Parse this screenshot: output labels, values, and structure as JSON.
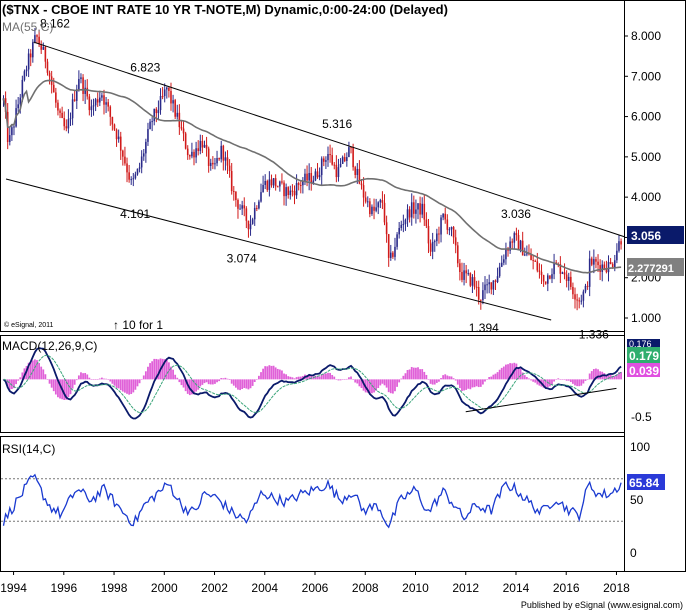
{
  "colors": {
    "up": "#2a2a8a",
    "down": "#d11a1a",
    "ma": "#707070",
    "macd_line": "#0a1a6a",
    "signal_line": "#3aa57a",
    "histogram": "#e060d8",
    "rsi_line": "#1a3ad0",
    "last_price_bg": "#0a1a6a",
    "ma_label_bg": "#808080",
    "macd_label_bg": "#2fae6e",
    "signal_label_bg": "#e050e0",
    "rsi_label_bg": "#2a3ad8",
    "trend": "#000000",
    "grid": "#cfcfcf"
  },
  "chart_data": [
    {
      "type": "candlestick",
      "title": "($TNX - CBOE INT RATE 10 YR T-NOTE,M) Dynamic,0:00-24:00 (Delayed)",
      "ma_label": "MA(55,C)",
      "ma_period": 55,
      "ylim": [
        0.5,
        8.7
      ],
      "yticks": [
        1.0,
        2.0,
        3.0,
        4.0,
        5.0,
        6.0,
        7.0,
        8.0
      ],
      "ytick_labels": [
        "1.000",
        "2.000",
        "3.000",
        "4.000",
        "5.000",
        "6.000",
        "7.000",
        "8.000"
      ],
      "xlim": [
        1993.5,
        2018.3
      ],
      "last_price": "3.056",
      "ma_value": "2.277291",
      "anchors": [
        [
          1993.6,
          6.4
        ],
        [
          1993.8,
          5.3
        ],
        [
          1994.0,
          5.8
        ],
        [
          1994.5,
          7.2
        ],
        [
          1994.9,
          8.0
        ],
        [
          1995.3,
          7.4
        ],
        [
          1995.8,
          6.0
        ],
        [
          1996.1,
          5.6
        ],
        [
          1996.6,
          7.0
        ],
        [
          1997.1,
          6.2
        ],
        [
          1997.5,
          6.6
        ],
        [
          1998.2,
          5.4
        ],
        [
          1998.7,
          4.3
        ],
        [
          1999.0,
          4.7
        ],
        [
          1999.5,
          5.9
        ],
        [
          1999.9,
          6.4
        ],
        [
          2000.1,
          6.7
        ],
        [
          2000.6,
          5.8
        ],
        [
          2001.0,
          5.0
        ],
        [
          2001.5,
          5.4
        ],
        [
          2001.9,
          4.6
        ],
        [
          2002.3,
          5.2
        ],
        [
          2002.8,
          4.0
        ],
        [
          2003.4,
          3.3
        ],
        [
          2003.9,
          4.3
        ],
        [
          2004.3,
          4.4
        ],
        [
          2004.7,
          4.2
        ],
        [
          2005.0,
          4.1
        ],
        [
          2005.5,
          4.4
        ],
        [
          2006.0,
          4.5
        ],
        [
          2006.5,
          5.1
        ],
        [
          2006.9,
          4.6
        ],
        [
          2007.4,
          5.2
        ],
        [
          2007.6,
          4.7
        ],
        [
          2007.9,
          4.1
        ],
        [
          2008.3,
          3.6
        ],
        [
          2008.7,
          3.9
        ],
        [
          2008.95,
          2.3
        ],
        [
          2009.4,
          3.3
        ],
        [
          2009.8,
          3.7
        ],
        [
          2010.3,
          3.7
        ],
        [
          2010.6,
          2.6
        ],
        [
          2011.1,
          3.5
        ],
        [
          2011.4,
          3.2
        ],
        [
          2011.8,
          2.1
        ],
        [
          2012.3,
          1.9
        ],
        [
          2012.55,
          1.5
        ],
        [
          2012.9,
          1.8
        ],
        [
          2013.2,
          2.0
        ],
        [
          2013.6,
          2.7
        ],
        [
          2013.9,
          3.0
        ],
        [
          2014.4,
          2.6
        ],
        [
          2014.8,
          2.3
        ],
        [
          2015.1,
          1.9
        ],
        [
          2015.5,
          2.3
        ],
        [
          2015.9,
          2.2
        ],
        [
          2016.1,
          1.9
        ],
        [
          2016.5,
          1.45
        ],
        [
          2016.8,
          1.7
        ],
        [
          2016.95,
          2.4
        ],
        [
          2017.4,
          2.3
        ],
        [
          2017.8,
          2.3
        ],
        [
          2018.0,
          2.7
        ],
        [
          2018.2,
          3.0
        ]
      ],
      "annotations": [
        {
          "text": "8.162",
          "x": 1995.05,
          "y": 8.162
        },
        {
          "text": "6.823",
          "x": 2000.0,
          "y": 6.823
        },
        {
          "text": "4.101",
          "x": 1998.8,
          "y": 4.101
        },
        {
          "text": "3.074",
          "x": 2002.8,
          "y": 3.074
        },
        {
          "text": "5.316",
          "x": 2007.0,
          "y": 5.316
        },
        {
          "text": "1.394",
          "x": 2012.6,
          "y": 1.394
        },
        {
          "text": "3.036",
          "x": 2013.8,
          "y": 3.036
        },
        {
          "text": "1.336",
          "x": 2016.5,
          "y": 1.336
        }
      ],
      "channel_upper": [
        [
          1994.8,
          7.85
        ],
        [
          2018.3,
          3.02
        ]
      ],
      "channel_lower": [
        [
          1993.7,
          4.45
        ],
        [
          2015.4,
          0.95
        ]
      ],
      "notes": [
        "© eSignal, 2011",
        "↑ 10 for 1"
      ]
    },
    {
      "type": "line",
      "label": "MACD(12,26,9,C)",
      "series": [
        {
          "name": "MACD",
          "value_label": "0.179"
        },
        {
          "name": "Signal",
          "value_label": "0.039"
        }
      ],
      "ylim": [
        -0.7,
        0.55
      ],
      "yticks": [
        -0.5
      ],
      "ytick_labels": [
        "-0.5"
      ],
      "hidden_value": "0.176",
      "trend_line": [
        [
          2012.0,
          -0.43
        ],
        [
          2018.0,
          -0.12
        ]
      ]
    },
    {
      "type": "line",
      "label": "RSI(14,C)",
      "series": [
        {
          "name": "RSI",
          "value_label": "65.84"
        }
      ],
      "ylim": [
        0,
        100
      ],
      "yticks": [
        0,
        50,
        100
      ],
      "ytick_labels": [
        "0",
        "50",
        "100"
      ],
      "levels": [
        70,
        30
      ],
      "anchors": [
        [
          1993.6,
          30
        ],
        [
          1994.3,
          55
        ],
        [
          1994.8,
          72
        ],
        [
          1995.4,
          45
        ],
        [
          1995.9,
          36
        ],
        [
          1996.5,
          60
        ],
        [
          1997.1,
          50
        ],
        [
          1997.6,
          60
        ],
        [
          1998.3,
          40
        ],
        [
          1998.8,
          28
        ],
        [
          1999.2,
          45
        ],
        [
          1999.8,
          58
        ],
        [
          2000.2,
          65
        ],
        [
          2000.7,
          44
        ],
        [
          2001.2,
          38
        ],
        [
          2001.6,
          56
        ],
        [
          2002.1,
          52
        ],
        [
          2002.7,
          38
        ],
        [
          2003.3,
          30
        ],
        [
          2003.9,
          58
        ],
        [
          2004.3,
          52
        ],
        [
          2004.9,
          48
        ],
        [
          2005.4,
          55
        ],
        [
          2006.0,
          60
        ],
        [
          2006.5,
          65
        ],
        [
          2007.0,
          50
        ],
        [
          2007.5,
          58
        ],
        [
          2007.9,
          40
        ],
        [
          2008.5,
          45
        ],
        [
          2008.95,
          25
        ],
        [
          2009.4,
          50
        ],
        [
          2010.0,
          60
        ],
        [
          2010.5,
          38
        ],
        [
          2011.1,
          58
        ],
        [
          2011.6,
          44
        ],
        [
          2011.9,
          32
        ],
        [
          2012.4,
          45
        ],
        [
          2013.0,
          40
        ],
        [
          2013.6,
          65
        ],
        [
          2014.0,
          60
        ],
        [
          2014.5,
          48
        ],
        [
          2015.0,
          38
        ],
        [
          2015.6,
          52
        ],
        [
          2015.9,
          44
        ],
        [
          2016.5,
          35
        ],
        [
          2016.9,
          65
        ],
        [
          2017.3,
          55
        ],
        [
          2017.8,
          56
        ],
        [
          2018.2,
          66
        ]
      ]
    }
  ],
  "xaxis": {
    "xticks": [
      1994,
      1996,
      1998,
      2000,
      2002,
      2004,
      2006,
      2008,
      2010,
      2012,
      2014,
      2016,
      2018
    ],
    "xtick_labels": [
      "1994",
      "1996",
      "1998",
      "2000",
      "2002",
      "2004",
      "2006",
      "2008",
      "2010",
      "2012",
      "2014",
      "2016",
      "2018"
    ]
  },
  "footer": "Published by eSignal (www.esignal.com)"
}
